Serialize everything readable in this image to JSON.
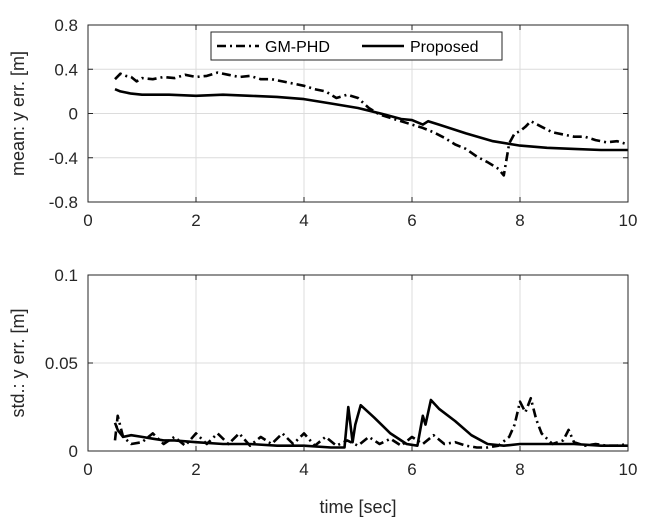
{
  "chart_data": [
    {
      "type": "line",
      "xlabel": "",
      "ylabel": "mean: y err. [m]",
      "xlim": [
        0,
        10
      ],
      "ylim": [
        -0.8,
        0.8
      ],
      "xticks": [
        0,
        2,
        4,
        6,
        8,
        10
      ],
      "yticks": [
        -0.8,
        -0.4,
        0,
        0.4,
        0.8
      ],
      "xtick_labels": [
        "0",
        "2",
        "4",
        "6",
        "8",
        "10"
      ],
      "ytick_labels": [
        "-0.8",
        "-0.4",
        "0",
        "0.4",
        "0.8"
      ],
      "grid": true,
      "legend": "top-center",
      "series": [
        {
          "name": "GM-PHD",
          "style": "dash-dot",
          "color": "#000000",
          "x": [
            0.5,
            0.6,
            0.7,
            0.8,
            0.9,
            1.0,
            1.2,
            1.4,
            1.6,
            1.8,
            2.0,
            2.2,
            2.4,
            2.6,
            2.8,
            3.0,
            3.2,
            3.4,
            3.6,
            3.8,
            4.0,
            4.2,
            4.4,
            4.6,
            4.8,
            5.0,
            5.2,
            5.4,
            5.6,
            5.8,
            6.0,
            6.2,
            6.4,
            6.6,
            6.8,
            7.0,
            7.2,
            7.4,
            7.6,
            7.7,
            7.8,
            7.9,
            8.0,
            8.1,
            8.2,
            8.4,
            8.6,
            8.8,
            9.0,
            9.2,
            9.4,
            9.6,
            9.8,
            10.0
          ],
          "y": [
            0.31,
            0.36,
            0.34,
            0.33,
            0.29,
            0.32,
            0.31,
            0.33,
            0.32,
            0.35,
            0.33,
            0.34,
            0.37,
            0.35,
            0.33,
            0.34,
            0.31,
            0.31,
            0.29,
            0.27,
            0.25,
            0.22,
            0.2,
            0.14,
            0.17,
            0.14,
            0.05,
            -0.01,
            -0.04,
            -0.07,
            -0.1,
            -0.13,
            -0.17,
            -0.22,
            -0.28,
            -0.32,
            -0.39,
            -0.44,
            -0.5,
            -0.56,
            -0.27,
            -0.18,
            -0.16,
            -0.12,
            -0.07,
            -0.12,
            -0.17,
            -0.19,
            -0.21,
            -0.21,
            -0.24,
            -0.26,
            -0.25,
            -0.28
          ]
        },
        {
          "name": "Proposed",
          "style": "solid",
          "color": "#000000",
          "x": [
            0.5,
            0.6,
            0.8,
            1.0,
            1.5,
            2.0,
            2.5,
            3.0,
            3.5,
            4.0,
            4.5,
            5.0,
            5.5,
            5.8,
            6.0,
            6.2,
            6.3,
            6.5,
            7.0,
            7.5,
            8.0,
            8.5,
            9.0,
            9.5,
            10.0
          ],
          "y": [
            0.22,
            0.2,
            0.18,
            0.17,
            0.17,
            0.16,
            0.17,
            0.16,
            0.15,
            0.13,
            0.09,
            0.05,
            -0.01,
            -0.05,
            -0.06,
            -0.1,
            -0.07,
            -0.1,
            -0.18,
            -0.25,
            -0.29,
            -0.31,
            -0.32,
            -0.33,
            -0.33
          ]
        }
      ]
    },
    {
      "type": "line",
      "xlabel": "time [sec]",
      "ylabel": "std.: y err. [m]",
      "xlim": [
        0,
        10
      ],
      "ylim": [
        0,
        0.1
      ],
      "xticks": [
        0,
        2,
        4,
        6,
        8,
        10
      ],
      "yticks": [
        0,
        0.05,
        0.1
      ],
      "xtick_labels": [
        "0",
        "2",
        "4",
        "6",
        "8",
        "10"
      ],
      "ytick_labels": [
        "0",
        "0.05",
        "0.1"
      ],
      "grid": true,
      "series": [
        {
          "name": "GM-PHD",
          "style": "dash-dot",
          "color": "#000000",
          "x": [
            0.5,
            0.55,
            0.65,
            0.8,
            1.0,
            1.2,
            1.4,
            1.6,
            1.8,
            2.0,
            2.2,
            2.4,
            2.6,
            2.8,
            3.0,
            3.2,
            3.4,
            3.6,
            3.8,
            4.0,
            4.2,
            4.4,
            4.6,
            4.8,
            5.0,
            5.2,
            5.4,
            5.6,
            5.8,
            6.0,
            6.2,
            6.4,
            6.6,
            6.8,
            7.0,
            7.2,
            7.4,
            7.6,
            7.8,
            7.9,
            8.0,
            8.1,
            8.2,
            8.3,
            8.4,
            8.6,
            8.8,
            8.9,
            9.0,
            9.2,
            9.4,
            9.6,
            9.8,
            10.0
          ],
          "y": [
            0.006,
            0.02,
            0.008,
            0.004,
            0.005,
            0.01,
            0.004,
            0.008,
            0.003,
            0.01,
            0.004,
            0.01,
            0.004,
            0.01,
            0.003,
            0.008,
            0.004,
            0.01,
            0.004,
            0.01,
            0.003,
            0.008,
            0.003,
            0.006,
            0.003,
            0.008,
            0.004,
            0.007,
            0.003,
            0.008,
            0.004,
            0.009,
            0.004,
            0.005,
            0.003,
            0.002,
            0.002,
            0.003,
            0.008,
            0.015,
            0.028,
            0.022,
            0.03,
            0.018,
            0.01,
            0.004,
            0.006,
            0.012,
            0.005,
            0.003,
            0.004,
            0.003,
            0.003,
            0.004
          ]
        },
        {
          "name": "Proposed",
          "style": "solid",
          "color": "#000000",
          "x": [
            0.5,
            0.55,
            0.65,
            0.8,
            1.0,
            1.2,
            1.4,
            1.6,
            2.0,
            2.5,
            3.0,
            3.5,
            4.0,
            4.5,
            4.75,
            4.82,
            4.9,
            4.95,
            5.05,
            5.3,
            5.6,
            5.9,
            6.1,
            6.2,
            6.25,
            6.35,
            6.5,
            6.8,
            7.1,
            7.4,
            7.7,
            8.0,
            8.5,
            9.0,
            9.5,
            10.0
          ],
          "y": [
            0.016,
            0.012,
            0.008,
            0.009,
            0.008,
            0.007,
            0.006,
            0.006,
            0.005,
            0.004,
            0.004,
            0.003,
            0.003,
            0.002,
            0.002,
            0.025,
            0.005,
            0.015,
            0.026,
            0.019,
            0.01,
            0.004,
            0.003,
            0.02,
            0.015,
            0.029,
            0.024,
            0.017,
            0.009,
            0.004,
            0.003,
            0.004,
            0.004,
            0.004,
            0.003,
            0.003
          ]
        }
      ]
    }
  ]
}
